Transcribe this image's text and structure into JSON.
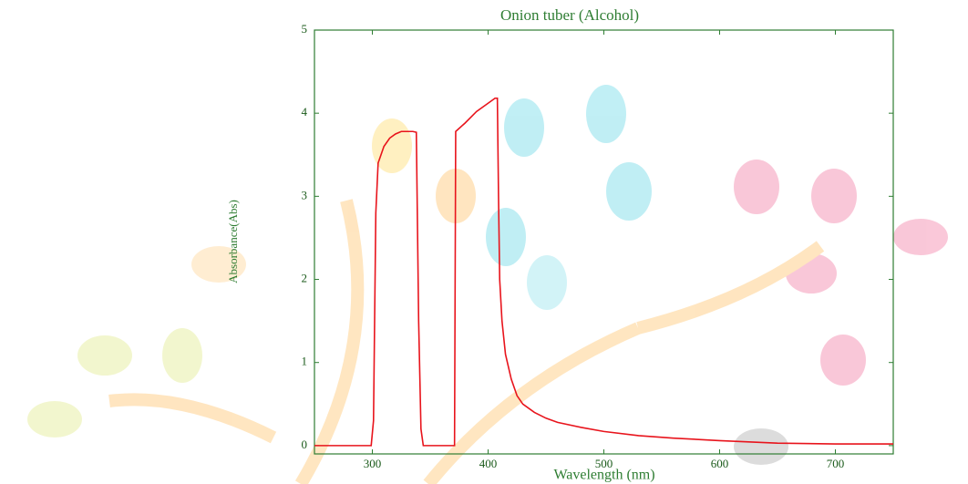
{
  "chart_data": {
    "type": "line",
    "title": "Onion tuber (Alcohol)",
    "x_label": "Wavelength (nm)",
    "y_label": "Absorbance(Abs)",
    "x": [
      250,
      299,
      301,
      303,
      305,
      310,
      315,
      320,
      325,
      330,
      335,
      338,
      340,
      342,
      344,
      370,
      371,
      372,
      380,
      390,
      400,
      406,
      408,
      409,
      410,
      412,
      415,
      420,
      425,
      430,
      440,
      450,
      460,
      480,
      500,
      530,
      560,
      600,
      650,
      700,
      750
    ],
    "values": [
      0,
      0,
      0.3,
      2.8,
      3.4,
      3.6,
      3.7,
      3.75,
      3.78,
      3.78,
      3.78,
      3.77,
      1.5,
      0.2,
      0,
      0,
      0,
      3.78,
      3.88,
      4.02,
      4.12,
      4.18,
      4.18,
      3.0,
      2.0,
      1.5,
      1.1,
      0.8,
      0.6,
      0.5,
      0.4,
      0.33,
      0.28,
      0.22,
      0.17,
      0.12,
      0.09,
      0.06,
      0.03,
      0.02,
      0.02
    ],
    "color": "#e8141c",
    "frame_color": "#2e7d32",
    "xlim": [
      250,
      750
    ],
    "xticks": [
      300,
      400,
      500,
      600,
      700
    ],
    "ylim": [
      -0.1,
      5
    ],
    "yticks": [
      0,
      1,
      2,
      3,
      4,
      5
    ]
  }
}
